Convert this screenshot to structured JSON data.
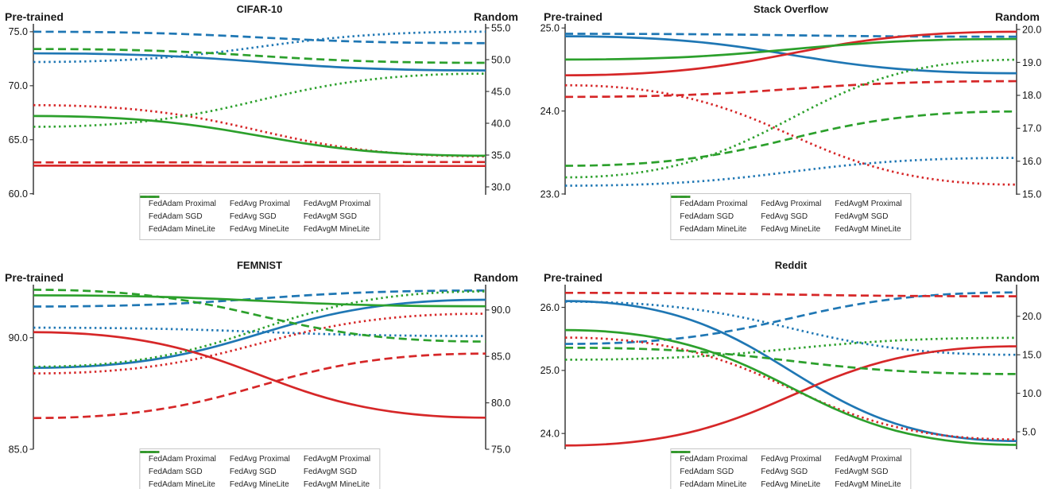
{
  "figure": {
    "left_header": "Pre-trained",
    "right_header": "Random",
    "groups": [
      {
        "name": "FedAdam",
        "color": "#1f77b4"
      },
      {
        "name": "FedAvg",
        "color": "#d62728"
      },
      {
        "name": "FedAvgM",
        "color": "#2ca02c"
      }
    ],
    "line_styles": [
      "dashed",
      "solid",
      "dotted"
    ],
    "axis_color": "#3a3a3a"
  },
  "chart_data": [
    {
      "type": "line",
      "title": "CIFAR-10",
      "x_endpoints": [
        "Pre-trained",
        "Random"
      ],
      "left_axis": {
        "label": "Pre-trained",
        "ticks": [
          75,
          70,
          65,
          60
        ],
        "tick_labels": [
          "75.0",
          "70.0",
          "65.0",
          "60.0"
        ],
        "lim": [
          59.9,
          75.73
        ]
      },
      "right_axis": {
        "label": "Random",
        "ticks": [
          55,
          50,
          45,
          40,
          35,
          30
        ],
        "tick_labels": [
          "55.0",
          "50.0",
          "45.0",
          "40.0",
          "35.0",
          "30.0"
        ],
        "lim": [
          28.75,
          55.63
        ]
      },
      "series": [
        {
          "name": "FedAdam Proximal",
          "color": "#1f77b4",
          "style": "dashed",
          "pretrained": 75.0,
          "random": 52.6
        },
        {
          "name": "FedAdam SGD",
          "color": "#1f77b4",
          "style": "solid",
          "pretrained": 73.0,
          "random": 48.3
        },
        {
          "name": "FedAdam MineLite",
          "color": "#1f77b4",
          "style": "dotted",
          "pretrained": 72.2,
          "random": 54.4
        },
        {
          "name": "FedAvg Proximal",
          "color": "#d62728",
          "style": "dashed",
          "pretrained": 62.9,
          "random": 33.9
        },
        {
          "name": "FedAvg SGD",
          "color": "#d62728",
          "style": "solid",
          "pretrained": 62.6,
          "random": 33.3
        },
        {
          "name": "FedAvg MineLite",
          "color": "#d62728",
          "style": "dotted",
          "pretrained": 68.2,
          "random": 34.8
        },
        {
          "name": "FedAvgM Proximal",
          "color": "#2ca02c",
          "style": "dashed",
          "pretrained": 73.4,
          "random": 49.5
        },
        {
          "name": "FedAvgM SGD",
          "color": "#2ca02c",
          "style": "solid",
          "pretrained": 67.2,
          "random": 34.9
        },
        {
          "name": "FedAvgM MineLite",
          "color": "#2ca02c",
          "style": "dotted",
          "pretrained": 66.2,
          "random": 47.8
        }
      ]
    },
    {
      "type": "line",
      "title": "Stack Overflow",
      "x_endpoints": [
        "Pre-trained",
        "Random"
      ],
      "left_axis": {
        "label": "Pre-trained",
        "ticks": [
          25,
          24,
          23
        ],
        "tick_labels": [
          "25.0",
          "24.0",
          "23.0"
        ],
        "lim": [
          22.99,
          25.05
        ]
      },
      "right_axis": {
        "label": "Random",
        "ticks": [
          20,
          19,
          18,
          17,
          16,
          15
        ],
        "tick_labels": [
          "20.0",
          "19.0",
          "18.0",
          "17.0",
          "16.0",
          "15.0"
        ],
        "lim": [
          14.98,
          20.17
        ]
      },
      "series": [
        {
          "name": "FedAdam Proximal",
          "color": "#1f77b4",
          "style": "dashed",
          "pretrained": 24.93,
          "random": 19.78
        },
        {
          "name": "FedAdam SGD",
          "color": "#1f77b4",
          "style": "solid",
          "pretrained": 24.9,
          "random": 18.67
        },
        {
          "name": "FedAdam MineLite",
          "color": "#1f77b4",
          "style": "dotted",
          "pretrained": 23.1,
          "random": 16.1
        },
        {
          "name": "FedAvg Proximal",
          "color": "#d62728",
          "style": "dashed",
          "pretrained": 24.17,
          "random": 18.43
        },
        {
          "name": "FedAvg SGD",
          "color": "#d62728",
          "style": "solid",
          "pretrained": 24.43,
          "random": 19.93
        },
        {
          "name": "FedAvg MineLite",
          "color": "#d62728",
          "style": "dotted",
          "pretrained": 24.31,
          "random": 15.29
        },
        {
          "name": "FedAvgM Proximal",
          "color": "#2ca02c",
          "style": "dashed",
          "pretrained": 23.34,
          "random": 17.51
        },
        {
          "name": "FedAvgM SGD",
          "color": "#2ca02c",
          "style": "solid",
          "pretrained": 24.62,
          "random": 19.71
        },
        {
          "name": "FedAvgM MineLite",
          "color": "#2ca02c",
          "style": "dotted",
          "pretrained": 23.2,
          "random": 19.08
        }
      ]
    },
    {
      "type": "line",
      "title": "FEMNIST",
      "x_endpoints": [
        "Pre-trained",
        "Random"
      ],
      "left_axis": {
        "label": "Pre-trained",
        "ticks": [
          90,
          85
        ],
        "tick_labels": [
          "90.0",
          "85.0"
        ],
        "lim": [
          85.0,
          92.38
        ]
      },
      "right_axis": {
        "label": "Random",
        "ticks": [
          90,
          85,
          80,
          75
        ],
        "tick_labels": [
          "90.0",
          "85.0",
          "80.0",
          "75.0"
        ],
        "lim": [
          75.0,
          92.73
        ]
      },
      "series": [
        {
          "name": "FedAdam Proximal",
          "color": "#1f77b4",
          "style": "dashed",
          "pretrained": 91.4,
          "random": 92.1
        },
        {
          "name": "FedAdam SGD",
          "color": "#1f77b4",
          "style": "solid",
          "pretrained": 88.65,
          "random": 91.1
        },
        {
          "name": "FedAdam MineLite",
          "color": "#1f77b4",
          "style": "dotted",
          "pretrained": 90.45,
          "random": 87.2
        },
        {
          "name": "FedAvg Proximal",
          "color": "#d62728",
          "style": "dashed",
          "pretrained": 86.4,
          "random": 85.3
        },
        {
          "name": "FedAvg SGD",
          "color": "#d62728",
          "style": "solid",
          "pretrained": 90.25,
          "random": 78.4
        },
        {
          "name": "FedAvg MineLite",
          "color": "#d62728",
          "style": "dotted",
          "pretrained": 88.4,
          "random": 89.6
        },
        {
          "name": "FedAvgM Proximal",
          "color": "#2ca02c",
          "style": "dashed",
          "pretrained": 92.15,
          "random": 86.6
        },
        {
          "name": "FedAvgM SGD",
          "color": "#2ca02c",
          "style": "solid",
          "pretrained": 91.9,
          "random": 90.4
        },
        {
          "name": "FedAvgM MineLite",
          "color": "#2ca02c",
          "style": "dotted",
          "pretrained": 88.7,
          "random": 92.0
        }
      ]
    },
    {
      "type": "line",
      "title": "Reddit",
      "x_endpoints": [
        "Pre-trained",
        "Random"
      ],
      "left_axis": {
        "label": "Pre-trained",
        "ticks": [
          26,
          25,
          24
        ],
        "tick_labels": [
          "26.0",
          "25.0",
          "24.0"
        ],
        "lim": [
          23.75,
          26.36
        ]
      },
      "right_axis": {
        "label": "Random",
        "ticks": [
          20,
          15,
          10,
          5
        ],
        "tick_labels": [
          "20.0",
          "15.0",
          "10.0",
          "5.0"
        ],
        "lim": [
          2.73,
          24.11
        ]
      },
      "series": [
        {
          "name": "FedAdam Proximal",
          "color": "#1f77b4",
          "style": "dashed",
          "pretrained": 25.42,
          "random": 23.1
        },
        {
          "name": "FedAdam SGD",
          "color": "#1f77b4",
          "style": "solid",
          "pretrained": 26.1,
          "random": 3.8
        },
        {
          "name": "FedAdam MineLite",
          "color": "#1f77b4",
          "style": "dotted",
          "pretrained": 26.09,
          "random": 15.0
        },
        {
          "name": "FedAvg Proximal",
          "color": "#d62728",
          "style": "dashed",
          "pretrained": 26.23,
          "random": 22.6
        },
        {
          "name": "FedAvg SGD",
          "color": "#d62728",
          "style": "solid",
          "pretrained": 23.81,
          "random": 16.1
        },
        {
          "name": "FedAvg MineLite",
          "color": "#d62728",
          "style": "dotted",
          "pretrained": 25.52,
          "random": 4.0
        },
        {
          "name": "FedAvgM Proximal",
          "color": "#2ca02c",
          "style": "dashed",
          "pretrained": 25.36,
          "random": 12.5
        },
        {
          "name": "FedAvgM SGD",
          "color": "#2ca02c",
          "style": "solid",
          "pretrained": 25.64,
          "random": 3.3
        },
        {
          "name": "FedAvgM MineLite",
          "color": "#2ca02c",
          "style": "dotted",
          "pretrained": 25.17,
          "random": 17.2
        }
      ]
    }
  ]
}
